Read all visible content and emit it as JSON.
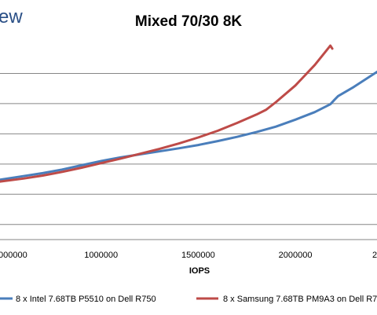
{
  "brand_fragment": "ew",
  "chart_data": {
    "type": "line",
    "title": "Mixed 70/30 8K",
    "xlabel": "IOPS",
    "ylabel": "",
    "x_ticks": [
      1000000,
      1500000,
      2000000
    ],
    "x_tick_labels": [
      "1000000",
      "1500000",
      "2000000"
    ],
    "left_partial_tick_label": "000000",
    "right_partial_tick_label": "2",
    "xlim": [
      480000,
      2420000
    ],
    "ylim": [
      0,
      6.5
    ],
    "y_gridlines": [
      0.5,
      1.5,
      2.5,
      3.5,
      4.5,
      5.5
    ],
    "grid": true,
    "legend_position": "bottom",
    "series": [
      {
        "name": "8 x Intel 7.68TB P5510 on Dell R750",
        "color": "#4a7ebb",
        "x": [
          480000,
          600000,
          700000,
          800000,
          900000,
          1000000,
          1100000,
          1200000,
          1300000,
          1400000,
          1500000,
          1600000,
          1700000,
          1800000,
          1900000,
          2000000,
          2100000,
          2180000,
          2200000,
          2220000,
          2300000,
          2420000
        ],
        "y": [
          1.98,
          2.1,
          2.2,
          2.32,
          2.46,
          2.6,
          2.72,
          2.82,
          2.92,
          3.02,
          3.13,
          3.26,
          3.4,
          3.56,
          3.74,
          3.97,
          4.22,
          4.48,
          4.62,
          4.75,
          5.05,
          5.55
        ]
      },
      {
        "name": "8 x Samsung 7.68TB PM9A3 on Dell R7",
        "color": "#be4b48",
        "x": [
          480000,
          600000,
          700000,
          800000,
          900000,
          1000000,
          1100000,
          1200000,
          1300000,
          1400000,
          1500000,
          1600000,
          1700000,
          1800000,
          1850000,
          1900000,
          2000000,
          2100000,
          2150000,
          2180000,
          2190000
        ],
        "y": [
          1.92,
          2.02,
          2.12,
          2.24,
          2.38,
          2.53,
          2.68,
          2.84,
          3.0,
          3.18,
          3.38,
          3.6,
          3.86,
          4.14,
          4.3,
          4.55,
          5.1,
          5.78,
          6.18,
          6.42,
          6.32
        ]
      }
    ]
  }
}
